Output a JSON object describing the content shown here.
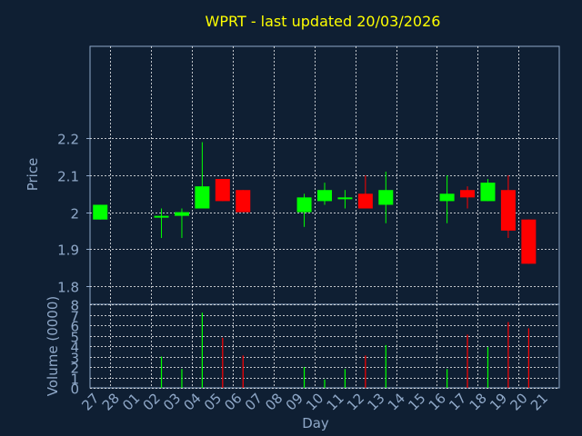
{
  "title": "WPRT - last updated 20/03/2026",
  "colors": {
    "background": "#0f1f33",
    "title": "#ffff00",
    "axis_text": "#8fa8c8",
    "grid": "#ffffff",
    "up": "#00ff00",
    "down": "#ff0000"
  },
  "chart_data": [
    {
      "type": "candlestick",
      "ylabel": "Price",
      "ylim": [
        1.75,
        2.45
      ],
      "yticks": [
        1.8,
        1.9,
        2,
        2.1,
        2.2
      ],
      "grid": true,
      "candles": [
        {
          "day": "27",
          "open": 1.98,
          "high": 2.02,
          "low": 1.98,
          "close": 2.02
        },
        {
          "day": "02",
          "open": 1.99,
          "high": 2.01,
          "low": 1.93,
          "close": 1.99
        },
        {
          "day": "03",
          "open": 1.99,
          "high": 2.01,
          "low": 1.93,
          "close": 2.0
        },
        {
          "day": "04",
          "open": 2.01,
          "high": 2.19,
          "low": 2.01,
          "close": 2.07
        },
        {
          "day": "05",
          "open": 2.09,
          "high": 2.09,
          "low": 2.03,
          "close": 2.03
        },
        {
          "day": "06",
          "open": 2.06,
          "high": 2.06,
          "low": 2.0,
          "close": 2.0
        },
        {
          "day": "09",
          "open": 2.0,
          "high": 2.05,
          "low": 1.96,
          "close": 2.04
        },
        {
          "day": "10",
          "open": 2.03,
          "high": 2.08,
          "low": 2.02,
          "close": 2.06
        },
        {
          "day": "11",
          "open": 2.04,
          "high": 2.06,
          "low": 2.01,
          "close": 2.04
        },
        {
          "day": "12",
          "open": 2.05,
          "high": 2.1,
          "low": 2.01,
          "close": 2.01
        },
        {
          "day": "13",
          "open": 2.02,
          "high": 2.11,
          "low": 1.97,
          "close": 2.06
        },
        {
          "day": "16",
          "open": 2.03,
          "high": 2.1,
          "low": 1.97,
          "close": 2.05
        },
        {
          "day": "17",
          "open": 2.06,
          "high": 2.07,
          "low": 2.01,
          "close": 2.04
        },
        {
          "day": "18",
          "open": 2.03,
          "high": 2.09,
          "low": 2.03,
          "close": 2.08
        },
        {
          "day": "19",
          "open": 2.06,
          "high": 2.1,
          "low": 1.93,
          "close": 1.95
        },
        {
          "day": "20",
          "open": 1.98,
          "high": 1.98,
          "low": 1.86,
          "close": 1.86
        }
      ]
    },
    {
      "type": "bar",
      "ylabel": "Volume (0000)",
      "xlabel": "Day",
      "ylim": [
        0,
        8
      ],
      "yticks": [
        0,
        1,
        2,
        3,
        4,
        5,
        6,
        7,
        8
      ],
      "grid": true,
      "categories": [
        "27",
        "28",
        "01",
        "02",
        "03",
        "04",
        "05",
        "06",
        "07",
        "08",
        "09",
        "10",
        "11",
        "12",
        "13",
        "14",
        "15",
        "16",
        "17",
        "18",
        "19",
        "20",
        "21"
      ],
      "values": [
        0,
        0,
        0,
        3.0,
        1.8,
        7.2,
        4.8,
        3.1,
        0,
        0,
        2.0,
        0.8,
        1.8,
        3.1,
        4.1,
        0,
        0,
        1.8,
        5.1,
        3.9,
        6.3,
        5.7,
        0
      ],
      "direction": [
        "up",
        "none",
        "none",
        "up",
        "up",
        "up",
        "down",
        "down",
        "none",
        "none",
        "up",
        "up",
        "up",
        "down",
        "up",
        "none",
        "none",
        "up",
        "down",
        "up",
        "down",
        "down",
        "none"
      ]
    }
  ]
}
